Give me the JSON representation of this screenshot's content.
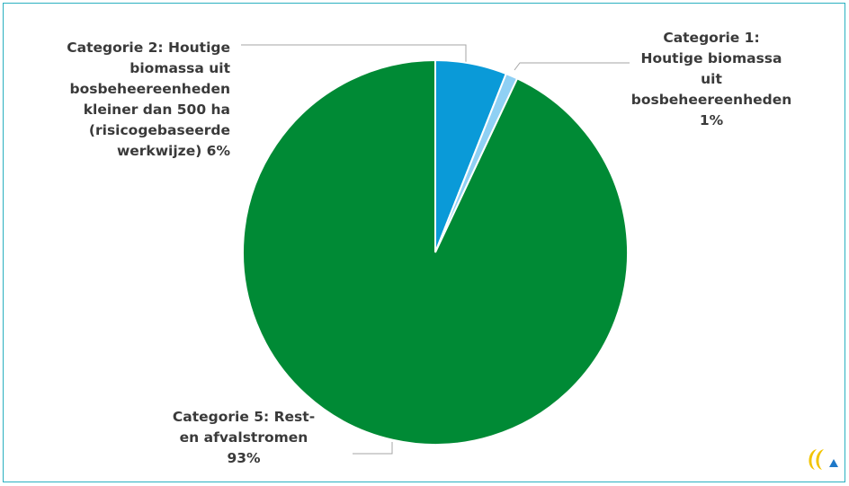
{
  "chart_data": {
    "type": "pie",
    "title": "",
    "start_angle_deg": 0,
    "direction": "clockwise",
    "slices": [
      {
        "label": "Categorie 2: Houtige biomassa uit bosbeheereenheden kleiner dan 500 ha (risicogebaseerde werkwijze)",
        "value": 6,
        "color": "#0a9ad8"
      },
      {
        "label": "Categorie 1: Houtige biomassa uit bosbeheereenheden",
        "value": 1,
        "color": "#8fd0f4"
      },
      {
        "label": "Categorie 5: Rest- en afvalstromen",
        "value": 93,
        "color": "#008a35"
      }
    ]
  },
  "labels": {
    "cat2": "Categorie 2: Houtige\nbiomassa uit\nbosbeheereenheden\nkleiner dan 500 ha\n(risicogebaseerde\nwerkwijze) 6%",
    "cat1": "Categorie 1:\nHoutige biomassa\nuit\nbosbeheereenheden\n1%",
    "cat5": "Categorie 5: Rest-\nen afvalstromen\n93%"
  },
  "colors": {
    "frame": "#2ab0c0",
    "leader": "#a6a6a6",
    "text": "#3a3a3a"
  },
  "logo": {
    "icon": "brand-logo-icon"
  }
}
